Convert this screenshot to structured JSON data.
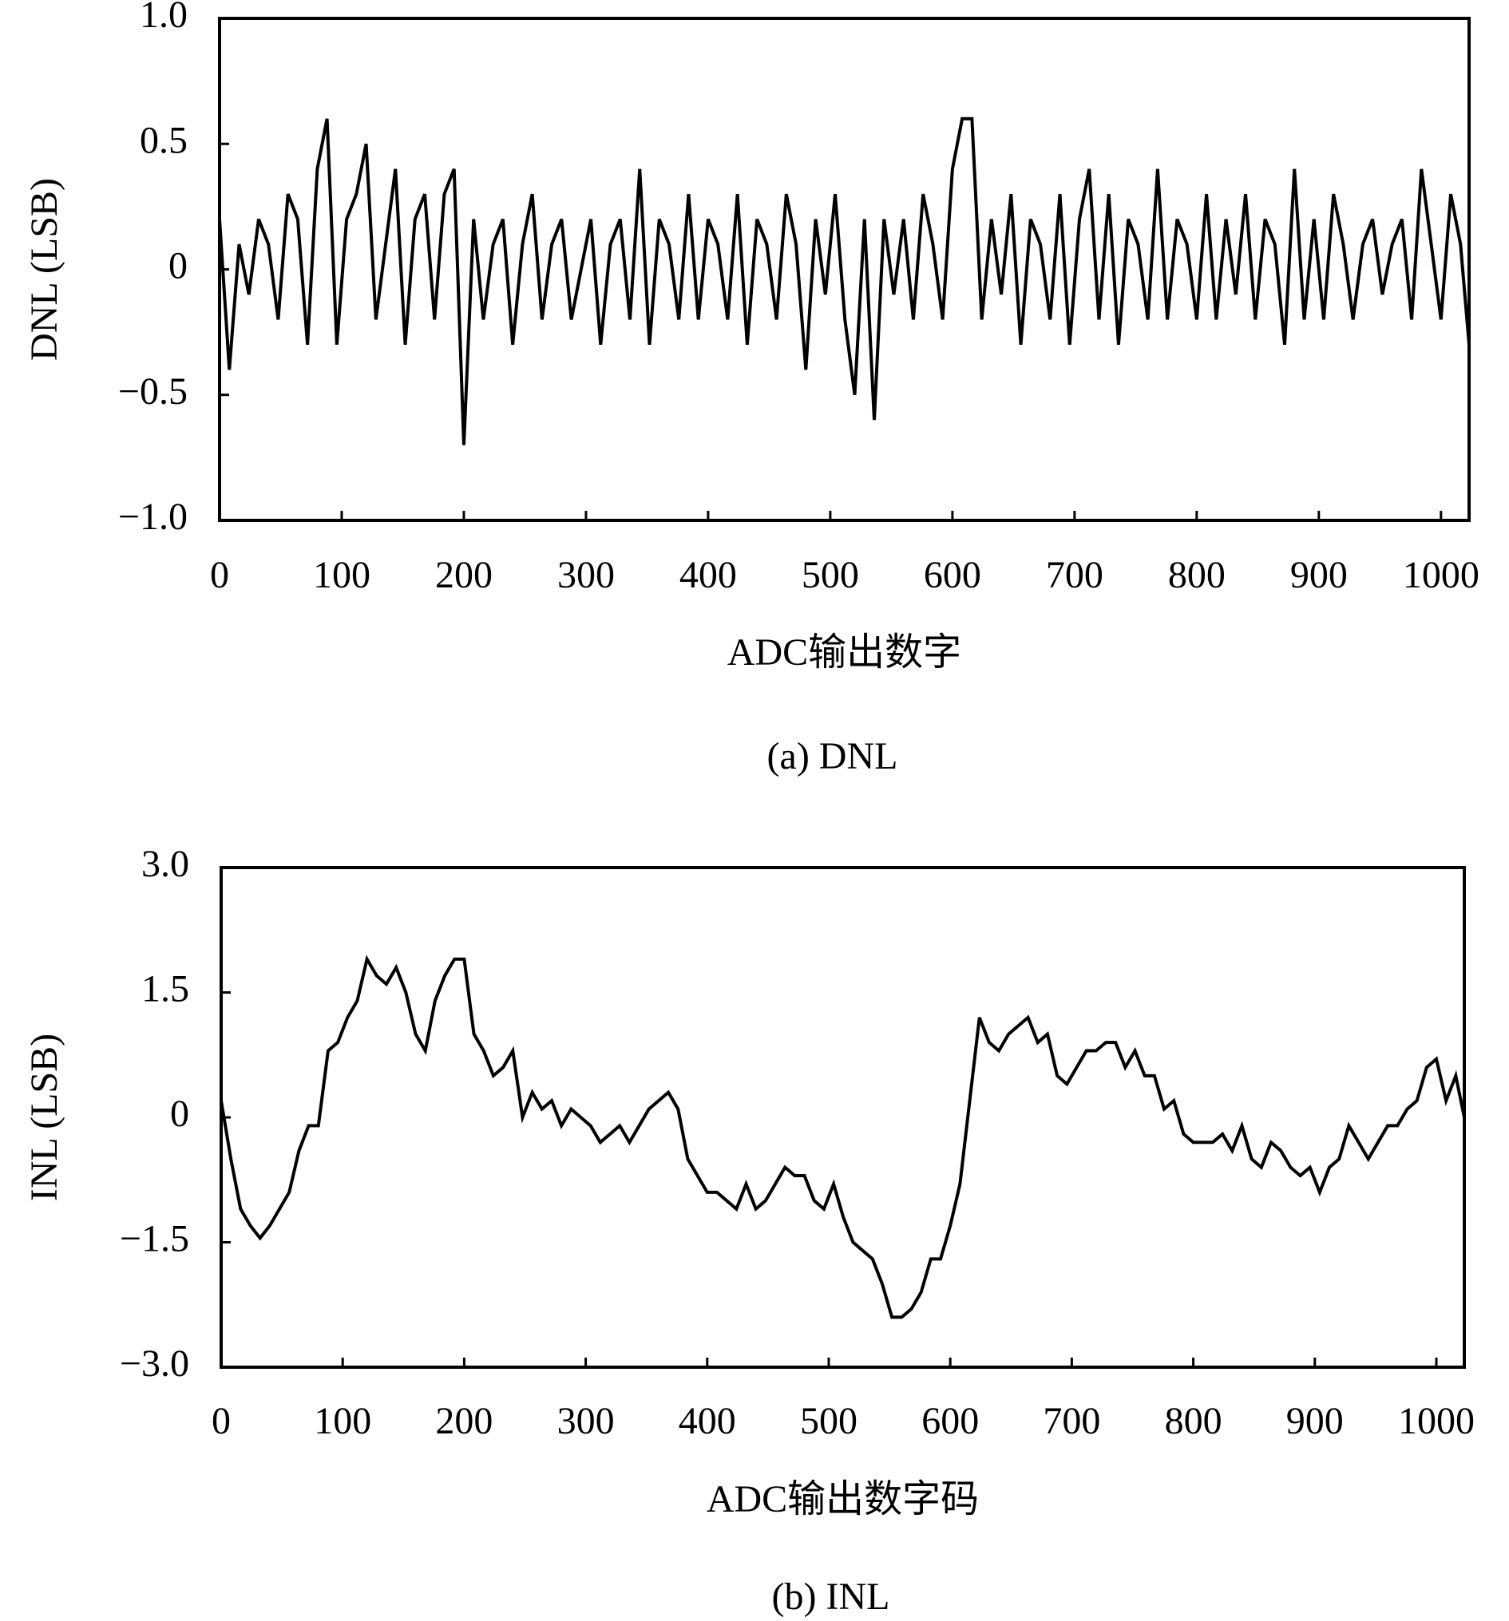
{
  "chart_data": [
    {
      "type": "line",
      "caption": "(a) DNL",
      "x_label": "ADC输出数字",
      "y_label": "DNL (LSB)",
      "color": "#000000",
      "xlim": [
        0,
        1023
      ],
      "ylim": [
        -1,
        1
      ],
      "xticks": [
        0,
        100,
        200,
        300,
        400,
        500,
        600,
        700,
        800,
        900,
        1000
      ],
      "yticks": [
        {
          "value": 1,
          "label": "1.0"
        },
        0.5,
        0,
        {
          "value": -0.5,
          "label": "−0.5"
        },
        {
          "value": -1,
          "label": "−1.0"
        }
      ],
      "x": [
        0,
        8,
        16,
        24,
        32,
        40,
        48,
        56,
        64,
        72,
        80,
        88,
        96,
        104,
        112,
        120,
        128,
        136,
        144,
        152,
        160,
        168,
        176,
        184,
        192,
        200,
        208,
        216,
        224,
        232,
        240,
        248,
        256,
        264,
        272,
        280,
        288,
        296,
        304,
        312,
        320,
        328,
        336,
        344,
        352,
        360,
        368,
        376,
        384,
        392,
        400,
        408,
        416,
        424,
        432,
        440,
        448,
        456,
        464,
        472,
        480,
        488,
        496,
        504,
        512,
        520,
        528,
        536,
        544,
        552,
        560,
        568,
        576,
        584,
        592,
        600,
        608,
        616,
        624,
        632,
        640,
        648,
        656,
        664,
        672,
        680,
        688,
        696,
        704,
        712,
        720,
        728,
        736,
        744,
        752,
        760,
        768,
        776,
        784,
        792,
        800,
        808,
        816,
        824,
        832,
        840,
        848,
        856,
        864,
        872,
        880,
        888,
        896,
        904,
        912,
        920,
        928,
        936,
        944,
        952,
        960,
        968,
        976,
        984,
        992,
        1000,
        1008,
        1016,
        1023
      ],
      "values": [
        0.2,
        -0.4,
        0.1,
        -0.1,
        0.2,
        0.1,
        -0.2,
        0.3,
        0.2,
        -0.3,
        0.4,
        0.6,
        -0.3,
        0.2,
        0.3,
        0.5,
        -0.2,
        0.1,
        0.4,
        -0.3,
        0.2,
        0.3,
        -0.2,
        0.3,
        0.4,
        -0.7,
        0.2,
        -0.2,
        0.1,
        0.2,
        -0.3,
        0.1,
        0.3,
        -0.2,
        0.1,
        0.2,
        -0.2,
        0.0,
        0.2,
        -0.3,
        0.1,
        0.2,
        -0.2,
        0.4,
        -0.3,
        0.2,
        0.1,
        -0.2,
        0.3,
        -0.2,
        0.2,
        0.1,
        -0.2,
        0.3,
        -0.3,
        0.2,
        0.1,
        -0.2,
        0.3,
        0.1,
        -0.4,
        0.2,
        -0.1,
        0.3,
        -0.2,
        -0.5,
        0.2,
        -0.6,
        0.2,
        -0.1,
        0.2,
        -0.2,
        0.3,
        0.1,
        -0.2,
        0.4,
        0.6,
        0.6,
        -0.2,
        0.2,
        -0.1,
        0.3,
        -0.3,
        0.2,
        0.1,
        -0.2,
        0.3,
        -0.3,
        0.2,
        0.4,
        -0.2,
        0.3,
        -0.3,
        0.2,
        0.1,
        -0.2,
        0.4,
        -0.2,
        0.2,
        0.1,
        -0.2,
        0.3,
        -0.2,
        0.2,
        -0.1,
        0.3,
        -0.2,
        0.2,
        0.1,
        -0.3,
        0.4,
        -0.2,
        0.2,
        -0.2,
        0.3,
        0.1,
        -0.2,
        0.1,
        0.2,
        -0.1,
        0.1,
        0.2,
        -0.2,
        0.4,
        0.1,
        -0.2,
        0.3,
        0.1,
        -0.3
      ]
    },
    {
      "type": "line",
      "caption": "(b) INL",
      "x_label": "ADC输出数字码",
      "y_label": "INL (LSB)",
      "color": "#000000",
      "xlim": [
        0,
        1023
      ],
      "ylim": [
        -3,
        3
      ],
      "xticks": [
        0,
        100,
        200,
        300,
        400,
        500,
        600,
        700,
        800,
        900,
        1000
      ],
      "yticks": [
        {
          "value": 3,
          "label": "3.0"
        },
        1.5,
        0,
        {
          "value": -1.5,
          "label": "−1.5"
        },
        {
          "value": -3,
          "label": "−3.0"
        }
      ],
      "x": [
        0,
        8,
        16,
        24,
        32,
        40,
        48,
        56,
        64,
        72,
        80,
        88,
        96,
        104,
        112,
        120,
        128,
        136,
        144,
        152,
        160,
        168,
        176,
        184,
        192,
        200,
        208,
        216,
        224,
        232,
        240,
        248,
        256,
        264,
        272,
        280,
        288,
        296,
        304,
        312,
        320,
        328,
        336,
        344,
        352,
        360,
        368,
        376,
        384,
        392,
        400,
        408,
        416,
        424,
        432,
        440,
        448,
        456,
        464,
        472,
        480,
        488,
        496,
        504,
        512,
        520,
        528,
        536,
        544,
        552,
        560,
        568,
        576,
        584,
        592,
        600,
        608,
        616,
        624,
        632,
        640,
        648,
        656,
        664,
        672,
        680,
        688,
        696,
        704,
        712,
        720,
        728,
        736,
        744,
        752,
        760,
        768,
        776,
        784,
        792,
        800,
        808,
        816,
        824,
        832,
        840,
        848,
        856,
        864,
        872,
        880,
        888,
        896,
        904,
        912,
        920,
        928,
        936,
        944,
        952,
        960,
        968,
        976,
        984,
        992,
        1000,
        1008,
        1016,
        1023
      ],
      "values": [
        0.2,
        -0.5,
        -1.1,
        -1.3,
        -1.45,
        -1.3,
        -1.1,
        -0.9,
        -0.4,
        -0.1,
        -0.1,
        0.8,
        0.9,
        1.2,
        1.4,
        1.9,
        1.7,
        1.6,
        1.8,
        1.5,
        1.0,
        0.8,
        1.4,
        1.7,
        1.9,
        1.9,
        1.0,
        0.8,
        0.5,
        0.6,
        0.8,
        0.0,
        0.3,
        0.1,
        0.2,
        -0.1,
        0.1,
        0.0,
        -0.1,
        -0.3,
        -0.2,
        -0.1,
        -0.3,
        -0.1,
        0.1,
        0.2,
        0.3,
        0.1,
        -0.5,
        -0.7,
        -0.9,
        -0.9,
        -1.0,
        -1.1,
        -0.8,
        -1.1,
        -1.0,
        -0.8,
        -0.6,
        -0.7,
        -0.7,
        -1.0,
        -1.1,
        -0.8,
        -1.2,
        -1.5,
        -1.6,
        -1.7,
        -2.0,
        -2.4,
        -2.4,
        -2.3,
        -2.1,
        -1.7,
        -1.7,
        -1.3,
        -0.8,
        0.2,
        1.2,
        0.9,
        0.8,
        1.0,
        1.1,
        1.2,
        0.9,
        1.0,
        0.5,
        0.4,
        0.6,
        0.8,
        0.8,
        0.9,
        0.9,
        0.6,
        0.8,
        0.5,
        0.5,
        0.1,
        0.2,
        -0.2,
        -0.3,
        -0.3,
        -0.3,
        -0.2,
        -0.4,
        -0.1,
        -0.5,
        -0.6,
        -0.3,
        -0.4,
        -0.6,
        -0.7,
        -0.6,
        -0.9,
        -0.6,
        -0.5,
        -0.1,
        -0.3,
        -0.5,
        -0.3,
        -0.1,
        -0.1,
        0.1,
        0.2,
        0.6,
        0.7,
        0.2,
        0.5,
        0.0
      ]
    }
  ]
}
